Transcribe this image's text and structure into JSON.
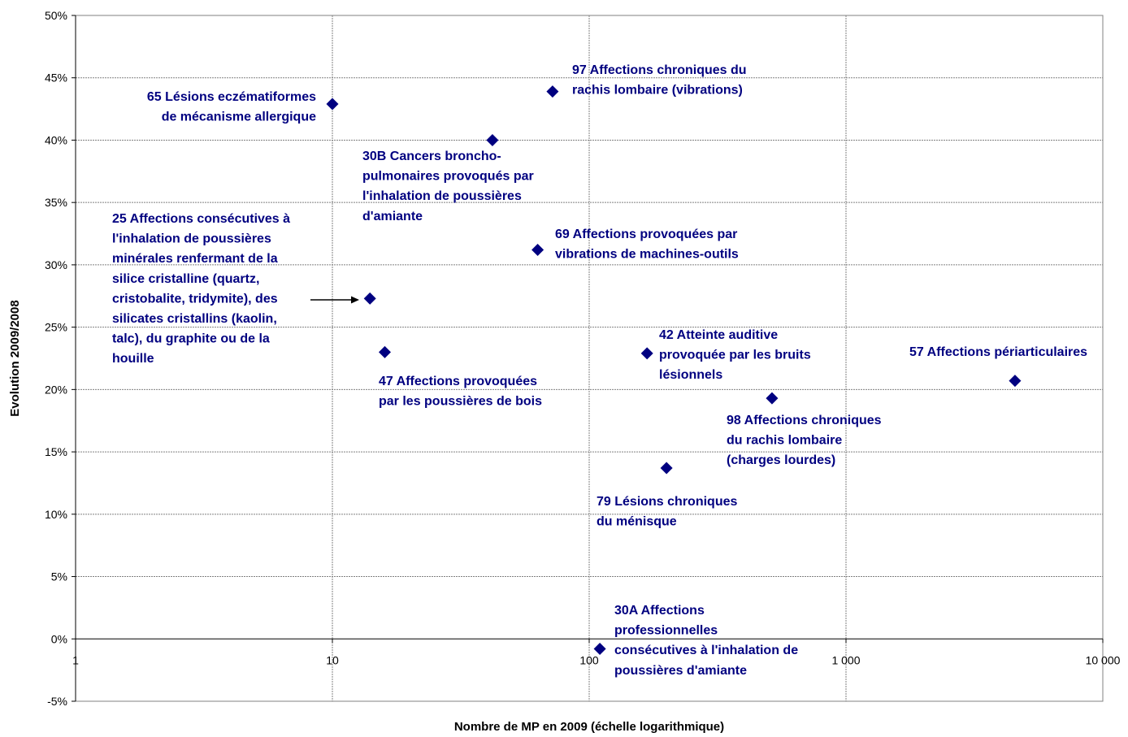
{
  "chart_data": {
    "type": "scatter",
    "title": "",
    "xlabel": "Nombre de MP en 2009 (échelle logarithmique)",
    "ylabel": "Evolution 2009/2008",
    "x_scale": "log",
    "xlim": [
      1,
      10000
    ],
    "ylim": [
      -5,
      50
    ],
    "x_ticks": [
      {
        "value": 1,
        "label": "1"
      },
      {
        "value": 10,
        "label": "10"
      },
      {
        "value": 100,
        "label": "100"
      },
      {
        "value": 1000,
        "label": "1 000"
      },
      {
        "value": 10000,
        "label": "10 000"
      }
    ],
    "y_ticks": [
      {
        "value": -5,
        "label": "-5%"
      },
      {
        "value": 0,
        "label": "0%"
      },
      {
        "value": 5,
        "label": "5%"
      },
      {
        "value": 10,
        "label": "10%"
      },
      {
        "value": 15,
        "label": "15%"
      },
      {
        "value": 20,
        "label": "20%"
      },
      {
        "value": 25,
        "label": "25%"
      },
      {
        "value": 30,
        "label": "30%"
      },
      {
        "value": 35,
        "label": "35%"
      },
      {
        "value": 40,
        "label": "40%"
      },
      {
        "value": 45,
        "label": "45%"
      },
      {
        "value": 50,
        "label": "50%"
      }
    ],
    "grid": true,
    "legend": "none",
    "marker_color": "#000080",
    "label_color": "#000080",
    "points": [
      {
        "id": "65",
        "x": 10,
        "y": 42.9,
        "label": [
          "65  Lésions eczématiformes",
          "de mécanisme allergique"
        ]
      },
      {
        "id": "97",
        "x": 72,
        "y": 43.9,
        "label": [
          "97  Affections chroniques du",
          "rachis lombaire (vibrations)"
        ]
      },
      {
        "id": "30B",
        "x": 42,
        "y": 40.0,
        "label": [
          "30B  Cancers broncho-",
          "pulmonaires provoqués par",
          "l'inhalation de poussières",
          "d'amiante"
        ]
      },
      {
        "id": "69",
        "x": 63,
        "y": 31.2,
        "label": [
          "69  Affections provoquées par",
          "vibrations de machines-outils"
        ]
      },
      {
        "id": "25",
        "x": 14,
        "y": 27.3,
        "label": [
          "25  Affections consécutives à",
          "l'inhalation de poussières",
          "minérales renfermant de la",
          "silice cristalline (quartz,",
          "cristobalite, tridymite), des",
          "silicates cristallins (kaolin,",
          "talc), du graphite ou de la",
          "houille"
        ]
      },
      {
        "id": "47",
        "x": 16,
        "y": 23.0,
        "label": [
          "47  Affections provoquées",
          "par les poussières de bois"
        ]
      },
      {
        "id": "42",
        "x": 168,
        "y": 22.9,
        "label": [
          "42  Atteinte auditive",
          "provoquée par les bruits",
          "lésionnels"
        ]
      },
      {
        "id": "57",
        "x": 4550,
        "y": 20.7,
        "label": [
          "57  Affections périarticulaires"
        ]
      },
      {
        "id": "98",
        "x": 515,
        "y": 19.3,
        "label": [
          "98  Affections chroniques",
          "du rachis lombaire",
          "(charges lourdes)"
        ]
      },
      {
        "id": "79",
        "x": 200,
        "y": 13.7,
        "label": [
          "79  Lésions chroniques",
          "du ménisque"
        ]
      },
      {
        "id": "30A",
        "x": 110,
        "y": -0.8,
        "label": [
          "30A  Affections",
          "professionnelles",
          "consécutives à l'inhalation de",
          "poussières d'amiante"
        ]
      }
    ]
  }
}
